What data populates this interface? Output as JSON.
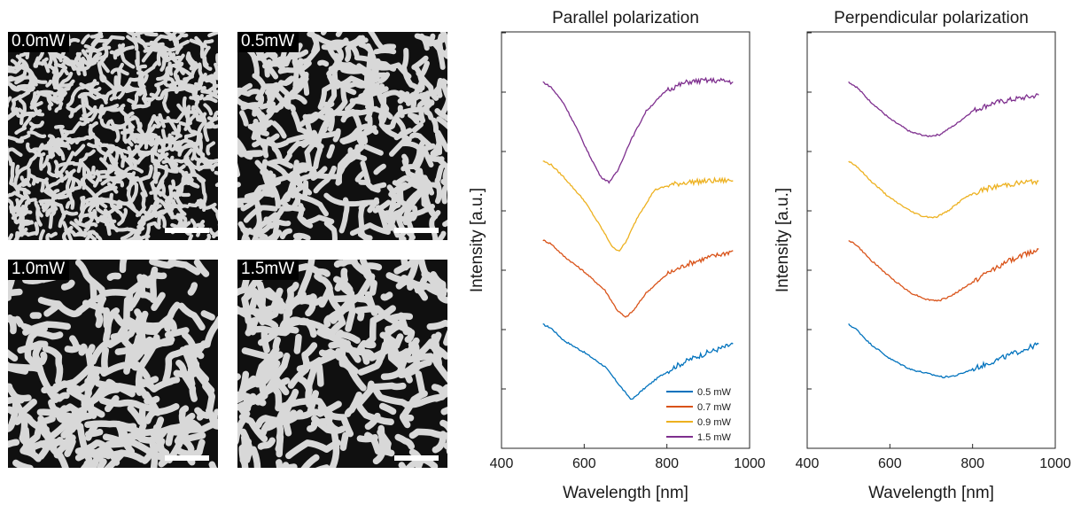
{
  "sem_panels": [
    {
      "label": "0.0mW",
      "density": "high",
      "scale_bar": true
    },
    {
      "label": "0.5mW",
      "density": "medium",
      "scale_bar": true
    },
    {
      "label": "1.0mW",
      "density": "low",
      "scale_bar": true
    },
    {
      "label": "1.5mW",
      "density": "low",
      "scale_bar": true
    }
  ],
  "chart_data": [
    {
      "type": "line",
      "title": "Parallel polarization",
      "xlabel": "Wavelength [nm]",
      "ylabel": "Intensity [a.u.]",
      "xlim": [
        400,
        1000
      ],
      "xticks": [
        400,
        600,
        800,
        1000
      ],
      "y_tick_labels_shown": false,
      "legend_placement": "bottom-right",
      "series": [
        {
          "name": "0.5 mW",
          "color": "#0072bd",
          "x": [
            500,
            520,
            550,
            600,
            650,
            680,
            700,
            715,
            740,
            780,
            820,
            860,
            900,
            940,
            960
          ],
          "y": [
            2.35,
            2.28,
            2.05,
            1.82,
            1.55,
            1.25,
            1.05,
            0.92,
            1.1,
            1.35,
            1.55,
            1.7,
            1.82,
            1.92,
            1.98
          ]
        },
        {
          "name": "0.7 mW",
          "color": "#d95319",
          "x": [
            500,
            520,
            550,
            600,
            650,
            680,
            700,
            720,
            750,
            800,
            850,
            900,
            940,
            960
          ],
          "y": [
            3.95,
            3.88,
            3.65,
            3.35,
            3.0,
            2.62,
            2.48,
            2.62,
            2.95,
            3.3,
            3.5,
            3.62,
            3.7,
            3.75
          ]
        },
        {
          "name": "0.9 mW",
          "color": "#edb120",
          "x": [
            500,
            520,
            550,
            600,
            640,
            670,
            685,
            700,
            730,
            770,
            810,
            850,
            900,
            940,
            960
          ],
          "y": [
            5.45,
            5.38,
            5.15,
            4.7,
            4.2,
            3.8,
            3.75,
            3.9,
            4.4,
            4.9,
            5.0,
            5.05,
            5.07,
            5.08,
            5.08
          ]
        },
        {
          "name": "1.5 mW",
          "color": "#7e2f8e",
          "x": [
            500,
            520,
            550,
            580,
            610,
            640,
            660,
            680,
            710,
            750,
            800,
            850,
            900,
            940,
            960
          ],
          "y": [
            6.95,
            6.85,
            6.55,
            6.1,
            5.6,
            5.15,
            5.05,
            5.25,
            5.8,
            6.4,
            6.8,
            6.95,
            6.98,
            6.97,
            6.95
          ]
        }
      ]
    },
    {
      "type": "line",
      "title": "Perpendicular polarization",
      "xlabel": "Wavelength [nm]",
      "ylabel": "Intensity [a.u.]",
      "xlim": [
        400,
        1000
      ],
      "xticks": [
        400,
        600,
        800,
        1000
      ],
      "y_tick_labels_shown": false,
      "series": [
        {
          "name": "0.5 mW",
          "color": "#0072bd",
          "x": [
            500,
            520,
            550,
            600,
            650,
            700,
            730,
            760,
            800,
            850,
            900,
            940,
            960
          ],
          "y": [
            2.35,
            2.25,
            2.0,
            1.7,
            1.5,
            1.4,
            1.35,
            1.38,
            1.5,
            1.65,
            1.8,
            1.92,
            1.98
          ]
        },
        {
          "name": "0.7 mW",
          "color": "#d95319",
          "x": [
            500,
            520,
            550,
            600,
            650,
            690,
            720,
            750,
            800,
            850,
            900,
            940,
            960
          ],
          "y": [
            3.95,
            3.85,
            3.6,
            3.25,
            2.95,
            2.82,
            2.8,
            2.9,
            3.15,
            3.4,
            3.6,
            3.72,
            3.78
          ]
        },
        {
          "name": "0.9 mW",
          "color": "#edb120",
          "x": [
            500,
            520,
            550,
            600,
            650,
            680,
            710,
            740,
            780,
            830,
            880,
            930,
            960
          ],
          "y": [
            5.45,
            5.35,
            5.1,
            4.75,
            4.5,
            4.4,
            4.38,
            4.5,
            4.75,
            4.92,
            5.0,
            5.05,
            5.07
          ]
        },
        {
          "name": "1.5 mW",
          "color": "#7e2f8e",
          "x": [
            500,
            520,
            550,
            600,
            650,
            690,
            720,
            760,
            800,
            850,
            900,
            940,
            960
          ],
          "y": [
            6.95,
            6.85,
            6.6,
            6.25,
            6.0,
            5.92,
            5.95,
            6.15,
            6.4,
            6.55,
            6.62,
            6.67,
            6.7
          ]
        }
      ]
    }
  ]
}
